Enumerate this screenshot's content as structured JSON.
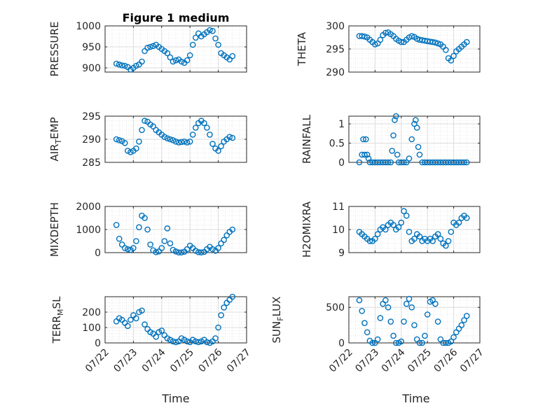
{
  "figure": {
    "title": "Figure 1 medium",
    "xlabel": "Time",
    "marker_color": "#0072BD",
    "x_tick_labels": [
      "07/22",
      "07/23",
      "07/24",
      "07/25",
      "07/26",
      "07/27"
    ]
  },
  "chart_data": [
    {
      "type": "scatter",
      "ylabel": "PRESSURE",
      "ylim": [
        890,
        1000
      ],
      "yticks": [
        900,
        950,
        1000
      ],
      "grid": true,
      "xlim": [
        "07/22",
        "07/27"
      ],
      "x": [
        0.4,
        0.5,
        0.6,
        0.7,
        0.8,
        0.9,
        1.0,
        1.1,
        1.2,
        1.3,
        1.4,
        1.5,
        1.6,
        1.7,
        1.8,
        1.9,
        2.0,
        2.1,
        2.2,
        2.3,
        2.4,
        2.5,
        2.6,
        2.7,
        2.8,
        2.9,
        3.0,
        3.1,
        3.2,
        3.3,
        3.4,
        3.5,
        3.6,
        3.7,
        3.8,
        3.9,
        4.0,
        4.1,
        4.2,
        4.3,
        4.4,
        4.5
      ],
      "y": [
        910,
        908,
        906,
        905,
        902,
        896,
        900,
        905,
        908,
        915,
        940,
        948,
        950,
        952,
        955,
        950,
        945,
        940,
        935,
        925,
        915,
        918,
        920,
        915,
        912,
        918,
        930,
        955,
        972,
        982,
        975,
        980,
        985,
        990,
        988,
        970,
        955,
        935,
        930,
        925,
        920,
        928
      ]
    },
    {
      "type": "scatter",
      "ylabel": "THETA",
      "ylim": [
        290,
        300
      ],
      "yticks": [
        290,
        295,
        300
      ],
      "grid": true,
      "xlim": [
        "07/22",
        "07/27"
      ],
      "x": [
        0.4,
        0.5,
        0.6,
        0.7,
        0.8,
        0.9,
        1.0,
        1.1,
        1.2,
        1.3,
        1.4,
        1.5,
        1.6,
        1.7,
        1.8,
        1.9,
        2.0,
        2.1,
        2.2,
        2.3,
        2.4,
        2.5,
        2.6,
        2.7,
        2.8,
        2.9,
        3.0,
        3.1,
        3.2,
        3.3,
        3.4,
        3.5,
        3.6,
        3.7,
        3.8,
        3.9,
        4.0,
        4.1,
        4.2,
        4.3,
        4.4,
        4.5
      ],
      "y": [
        297.8,
        297.8,
        297.7,
        297.5,
        297.0,
        296.5,
        296.0,
        296.2,
        297.0,
        298.0,
        298.5,
        298.6,
        298.2,
        297.8,
        297.2,
        296.8,
        296.5,
        296.5,
        297.0,
        297.5,
        297.8,
        297.6,
        297.2,
        297.0,
        296.9,
        296.8,
        296.7,
        296.6,
        296.5,
        296.4,
        296.2,
        296.0,
        295.5,
        294.8,
        293.0,
        292.5,
        293.5,
        294.5,
        295.0,
        295.5,
        296.0,
        296.5
      ]
    },
    {
      "type": "scatter",
      "ylabel": "AIR_TEMP",
      "ylim": [
        285,
        295
      ],
      "yticks": [
        285,
        290,
        295
      ],
      "grid": true,
      "xlim": [
        "07/22",
        "07/27"
      ],
      "x": [
        0.4,
        0.5,
        0.6,
        0.7,
        0.8,
        0.9,
        1.0,
        1.1,
        1.2,
        1.3,
        1.4,
        1.5,
        1.6,
        1.7,
        1.8,
        1.9,
        2.0,
        2.1,
        2.2,
        2.3,
        2.4,
        2.5,
        2.6,
        2.7,
        2.8,
        2.9,
        3.0,
        3.1,
        3.2,
        3.3,
        3.4,
        3.5,
        3.6,
        3.7,
        3.8,
        3.9,
        4.0,
        4.1,
        4.2,
        4.3,
        4.4,
        4.5
      ],
      "y": [
        290,
        289.8,
        289.6,
        289.2,
        287.5,
        287.2,
        287.5,
        288.0,
        289.5,
        292.0,
        294.0,
        293.8,
        293.2,
        292.8,
        292.0,
        291.5,
        291.0,
        290.5,
        290.2,
        290.0,
        289.8,
        289.5,
        289.3,
        289.4,
        289.5,
        289.3,
        289.5,
        291.0,
        292.5,
        293.5,
        294.0,
        293.5,
        292.5,
        291.0,
        289.0,
        288.0,
        287.5,
        288.5,
        289.5,
        290.0,
        290.5,
        290.3
      ]
    },
    {
      "type": "scatter",
      "ylabel": "RAINFALL",
      "ylim": [
        0,
        1.2
      ],
      "yticks": [
        0,
        0.5,
        1
      ],
      "grid": true,
      "xlim": [
        "07/22",
        "07/27"
      ],
      "x": [
        0.4,
        0.5,
        0.55,
        0.6,
        0.65,
        0.7,
        0.75,
        0.8,
        0.9,
        1.0,
        1.1,
        1.2,
        1.3,
        1.4,
        1.5,
        1.6,
        1.65,
        1.7,
        1.75,
        1.8,
        1.85,
        1.9,
        2.0,
        2.1,
        2.2,
        2.3,
        2.4,
        2.5,
        2.55,
        2.6,
        2.65,
        2.7,
        2.8,
        2.9,
        3.0,
        3.1,
        3.2,
        3.3,
        3.4,
        3.5,
        3.6,
        3.7,
        3.8,
        3.9,
        4.0,
        4.1,
        4.2,
        4.3,
        4.4,
        4.5
      ],
      "y": [
        0,
        0.2,
        0.6,
        0.2,
        0.6,
        0.2,
        0.1,
        0,
        0,
        0,
        0,
        0,
        0,
        0,
        0,
        0,
        0.3,
        0.7,
        1.1,
        1.2,
        0.2,
        0,
        0,
        0,
        0,
        0.1,
        0.6,
        1.0,
        1.1,
        0.9,
        0.4,
        0.2,
        0,
        0,
        0,
        0,
        0,
        0,
        0,
        0,
        0,
        0,
        0,
        0,
        0,
        0,
        0,
        0,
        0,
        0
      ]
    },
    {
      "type": "scatter",
      "ylabel": "MIXDEPTH",
      "ylim": [
        0,
        2000
      ],
      "yticks": [
        0,
        1000,
        2000
      ],
      "grid": true,
      "xlim": [
        "07/22",
        "07/27"
      ],
      "x": [
        0.4,
        0.5,
        0.6,
        0.7,
        0.8,
        0.9,
        1.0,
        1.1,
        1.2,
        1.3,
        1.4,
        1.5,
        1.6,
        1.7,
        1.8,
        1.9,
        2.0,
        2.1,
        2.2,
        2.3,
        2.4,
        2.5,
        2.6,
        2.7,
        2.8,
        2.9,
        3.0,
        3.1,
        3.2,
        3.3,
        3.4,
        3.5,
        3.6,
        3.7,
        3.8,
        3.9,
        4.0,
        4.1,
        4.2,
        4.3,
        4.4,
        4.5
      ],
      "y": [
        1200,
        600,
        350,
        200,
        150,
        120,
        200,
        500,
        1100,
        1600,
        1500,
        1000,
        350,
        100,
        20,
        50,
        200,
        500,
        1050,
        400,
        120,
        50,
        10,
        10,
        40,
        150,
        300,
        200,
        80,
        20,
        10,
        30,
        150,
        250,
        150,
        80,
        200,
        400,
        550,
        750,
        900,
        1000
      ]
    },
    {
      "type": "scatter",
      "ylabel": "H2OMIXRA",
      "ylim": [
        9,
        11
      ],
      "yticks": [
        9,
        10,
        11
      ],
      "grid": true,
      "xlim": [
        "07/22",
        "07/27"
      ],
      "x": [
        0.4,
        0.5,
        0.6,
        0.7,
        0.8,
        0.9,
        1.0,
        1.1,
        1.2,
        1.3,
        1.4,
        1.5,
        1.6,
        1.7,
        1.8,
        1.9,
        2.0,
        2.1,
        2.2,
        2.3,
        2.4,
        2.5,
        2.6,
        2.7,
        2.8,
        2.9,
        3.0,
        3.1,
        3.2,
        3.3,
        3.4,
        3.5,
        3.6,
        3.7,
        3.8,
        3.9,
        4.0,
        4.1,
        4.2,
        4.3,
        4.4,
        4.5
      ],
      "y": [
        9.9,
        9.8,
        9.7,
        9.6,
        9.5,
        9.5,
        9.6,
        9.8,
        10.0,
        10.1,
        10.0,
        10.2,
        10.3,
        10.2,
        10.0,
        10.1,
        10.3,
        10.8,
        10.6,
        9.9,
        9.5,
        9.6,
        9.8,
        9.7,
        9.5,
        9.6,
        9.5,
        9.6,
        9.5,
        9.7,
        9.8,
        9.6,
        9.4,
        9.3,
        9.5,
        9.9,
        10.3,
        10.2,
        10.3,
        10.5,
        10.6,
        10.5
      ]
    },
    {
      "type": "scatter",
      "ylabel": "TERR_MSL",
      "ylim": [
        0,
        300
      ],
      "yticks": [
        0,
        100,
        200
      ],
      "grid": true,
      "xlim": [
        "07/22",
        "07/27"
      ],
      "x": [
        0.4,
        0.5,
        0.6,
        0.7,
        0.8,
        0.9,
        1.0,
        1.1,
        1.2,
        1.3,
        1.4,
        1.5,
        1.6,
        1.7,
        1.8,
        1.9,
        2.0,
        2.1,
        2.2,
        2.3,
        2.4,
        2.5,
        2.6,
        2.7,
        2.8,
        2.9,
        3.0,
        3.1,
        3.2,
        3.3,
        3.4,
        3.5,
        3.6,
        3.7,
        3.8,
        3.9,
        4.0,
        4.1,
        4.2,
        4.3,
        4.4,
        4.5
      ],
      "y": [
        140,
        160,
        150,
        130,
        110,
        150,
        180,
        160,
        200,
        210,
        120,
        90,
        70,
        60,
        40,
        70,
        80,
        50,
        30,
        20,
        10,
        5,
        10,
        30,
        20,
        10,
        5,
        20,
        10,
        5,
        10,
        20,
        5,
        0,
        10,
        30,
        100,
        180,
        230,
        260,
        280,
        300
      ]
    },
    {
      "type": "scatter",
      "ylabel": "SUN_FLUX",
      "ylim": [
        0,
        650
      ],
      "yticks": [
        0,
        500
      ],
      "grid": true,
      "xlim": [
        "07/22",
        "07/27"
      ],
      "x": [
        0.4,
        0.5,
        0.6,
        0.7,
        0.8,
        0.9,
        1.0,
        1.1,
        1.2,
        1.3,
        1.4,
        1.5,
        1.6,
        1.7,
        1.8,
        1.9,
        2.0,
        2.1,
        2.2,
        2.3,
        2.4,
        2.5,
        2.6,
        2.7,
        2.8,
        2.9,
        3.0,
        3.1,
        3.2,
        3.3,
        3.4,
        3.5,
        3.6,
        3.7,
        3.8,
        3.9,
        4.0,
        4.1,
        4.2,
        4.3,
        4.4,
        4.5
      ],
      "y": [
        600,
        450,
        280,
        150,
        30,
        0,
        0,
        50,
        350,
        550,
        600,
        500,
        300,
        100,
        0,
        0,
        20,
        300,
        550,
        620,
        500,
        250,
        50,
        0,
        0,
        100,
        400,
        580,
        600,
        550,
        300,
        50,
        0,
        0,
        0,
        20,
        80,
        150,
        200,
        250,
        320,
        380
      ]
    }
  ]
}
